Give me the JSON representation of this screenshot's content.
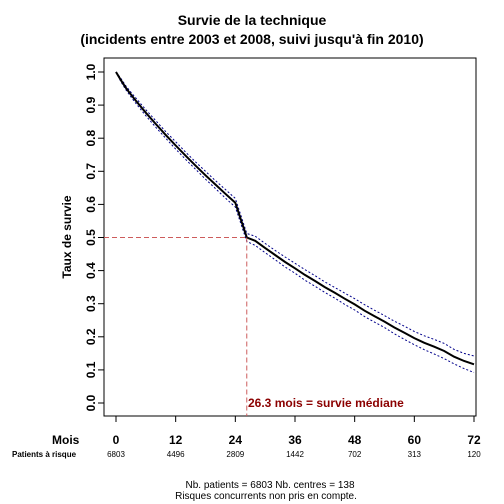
{
  "chart_data": {
    "type": "line",
    "title_line1": "Survie de la technique",
    "title_line2": "(incidents entre 2003 et 2008, suivi jusqu'à fin 2010)",
    "ylabel": "Taux de survie",
    "x_row_label": "Mois",
    "risk_row_label": "Patients à risque",
    "xlim": [
      0,
      72
    ],
    "ylim": [
      0,
      1
    ],
    "x_ticks": [
      0,
      12,
      24,
      36,
      48,
      60,
      72
    ],
    "x_tick_labels": [
      "0",
      "12",
      "24",
      "36",
      "48",
      "60",
      "72"
    ],
    "y_ticks": [
      0,
      0.1,
      0.2,
      0.3,
      0.4,
      0.5,
      0.6,
      0.7,
      0.8,
      0.9,
      1
    ],
    "y_tick_labels": [
      "0.0",
      "0.1",
      "0.2",
      "0.3",
      "0.4",
      "0.5",
      "0.6",
      "0.7",
      "0.8",
      "0.9",
      "1.0"
    ],
    "at_risk": [
      "6803",
      "4496",
      "2809",
      "1442",
      "702",
      "313",
      "120"
    ],
    "series": [
      {
        "role": "estimate",
        "x": [
          0,
          1,
          2,
          3,
          4,
          6,
          8,
          10,
          12,
          14,
          16,
          18,
          20,
          22,
          24,
          26.3,
          28,
          30,
          32,
          34,
          36,
          38,
          40,
          42,
          44,
          46,
          48,
          50,
          52,
          54,
          56,
          58,
          60,
          62,
          64,
          66,
          68,
          70,
          72
        ],
        "y": [
          1.0,
          0.975,
          0.952,
          0.932,
          0.913,
          0.877,
          0.843,
          0.81,
          0.778,
          0.747,
          0.717,
          0.688,
          0.66,
          0.632,
          0.605,
          0.5,
          0.49,
          0.468,
          0.447,
          0.426,
          0.407,
          0.387,
          0.369,
          0.35,
          0.333,
          0.315,
          0.298,
          0.279,
          0.262,
          0.246,
          0.228,
          0.212,
          0.196,
          0.182,
          0.17,
          0.157,
          0.14,
          0.127,
          0.117
        ]
      },
      {
        "role": "upper_ci",
        "x": [
          0,
          1,
          2,
          3,
          4,
          6,
          8,
          10,
          12,
          14,
          16,
          18,
          20,
          22,
          24,
          26.3,
          28,
          30,
          32,
          34,
          36,
          38,
          40,
          42,
          44,
          46,
          48,
          50,
          52,
          54,
          56,
          58,
          60,
          62,
          64,
          66,
          68,
          70,
          72
        ],
        "y": [
          1.0,
          0.98,
          0.958,
          0.939,
          0.921,
          0.886,
          0.853,
          0.82,
          0.789,
          0.758,
          0.728,
          0.7,
          0.672,
          0.645,
          0.618,
          0.512,
          0.504,
          0.482,
          0.461,
          0.441,
          0.422,
          0.403,
          0.385,
          0.366,
          0.349,
          0.332,
          0.315,
          0.297,
          0.28,
          0.264,
          0.247,
          0.232,
          0.216,
          0.203,
          0.192,
          0.18,
          0.162,
          0.15,
          0.142
        ]
      },
      {
        "role": "lower_ci",
        "x": [
          0,
          1,
          2,
          3,
          4,
          6,
          8,
          10,
          12,
          14,
          16,
          18,
          20,
          22,
          24,
          26.3,
          28,
          30,
          32,
          34,
          36,
          38,
          40,
          42,
          44,
          46,
          48,
          50,
          52,
          54,
          56,
          58,
          60,
          62,
          64,
          66,
          68,
          70,
          72
        ],
        "y": [
          1.0,
          0.97,
          0.946,
          0.925,
          0.905,
          0.868,
          0.833,
          0.8,
          0.767,
          0.736,
          0.706,
          0.676,
          0.648,
          0.619,
          0.592,
          0.488,
          0.476,
          0.454,
          0.433,
          0.411,
          0.392,
          0.371,
          0.353,
          0.334,
          0.317,
          0.298,
          0.281,
          0.261,
          0.244,
          0.228,
          0.209,
          0.192,
          0.176,
          0.161,
          0.148,
          0.134,
          0.118,
          0.104,
          0.092
        ]
      }
    ],
    "median": {
      "x": 26.3,
      "y": 0.5,
      "label": "26.3 mois = survie médiane"
    },
    "colors": {
      "estimate": "#000000",
      "ci": "#00008b",
      "median_line": "#cd5c5c",
      "annotation": "#8b0000"
    }
  },
  "footer": {
    "line1": "Nb. patients = 6803     Nb. centres = 138",
    "line2": "Risques concurrents non pris en compte."
  }
}
